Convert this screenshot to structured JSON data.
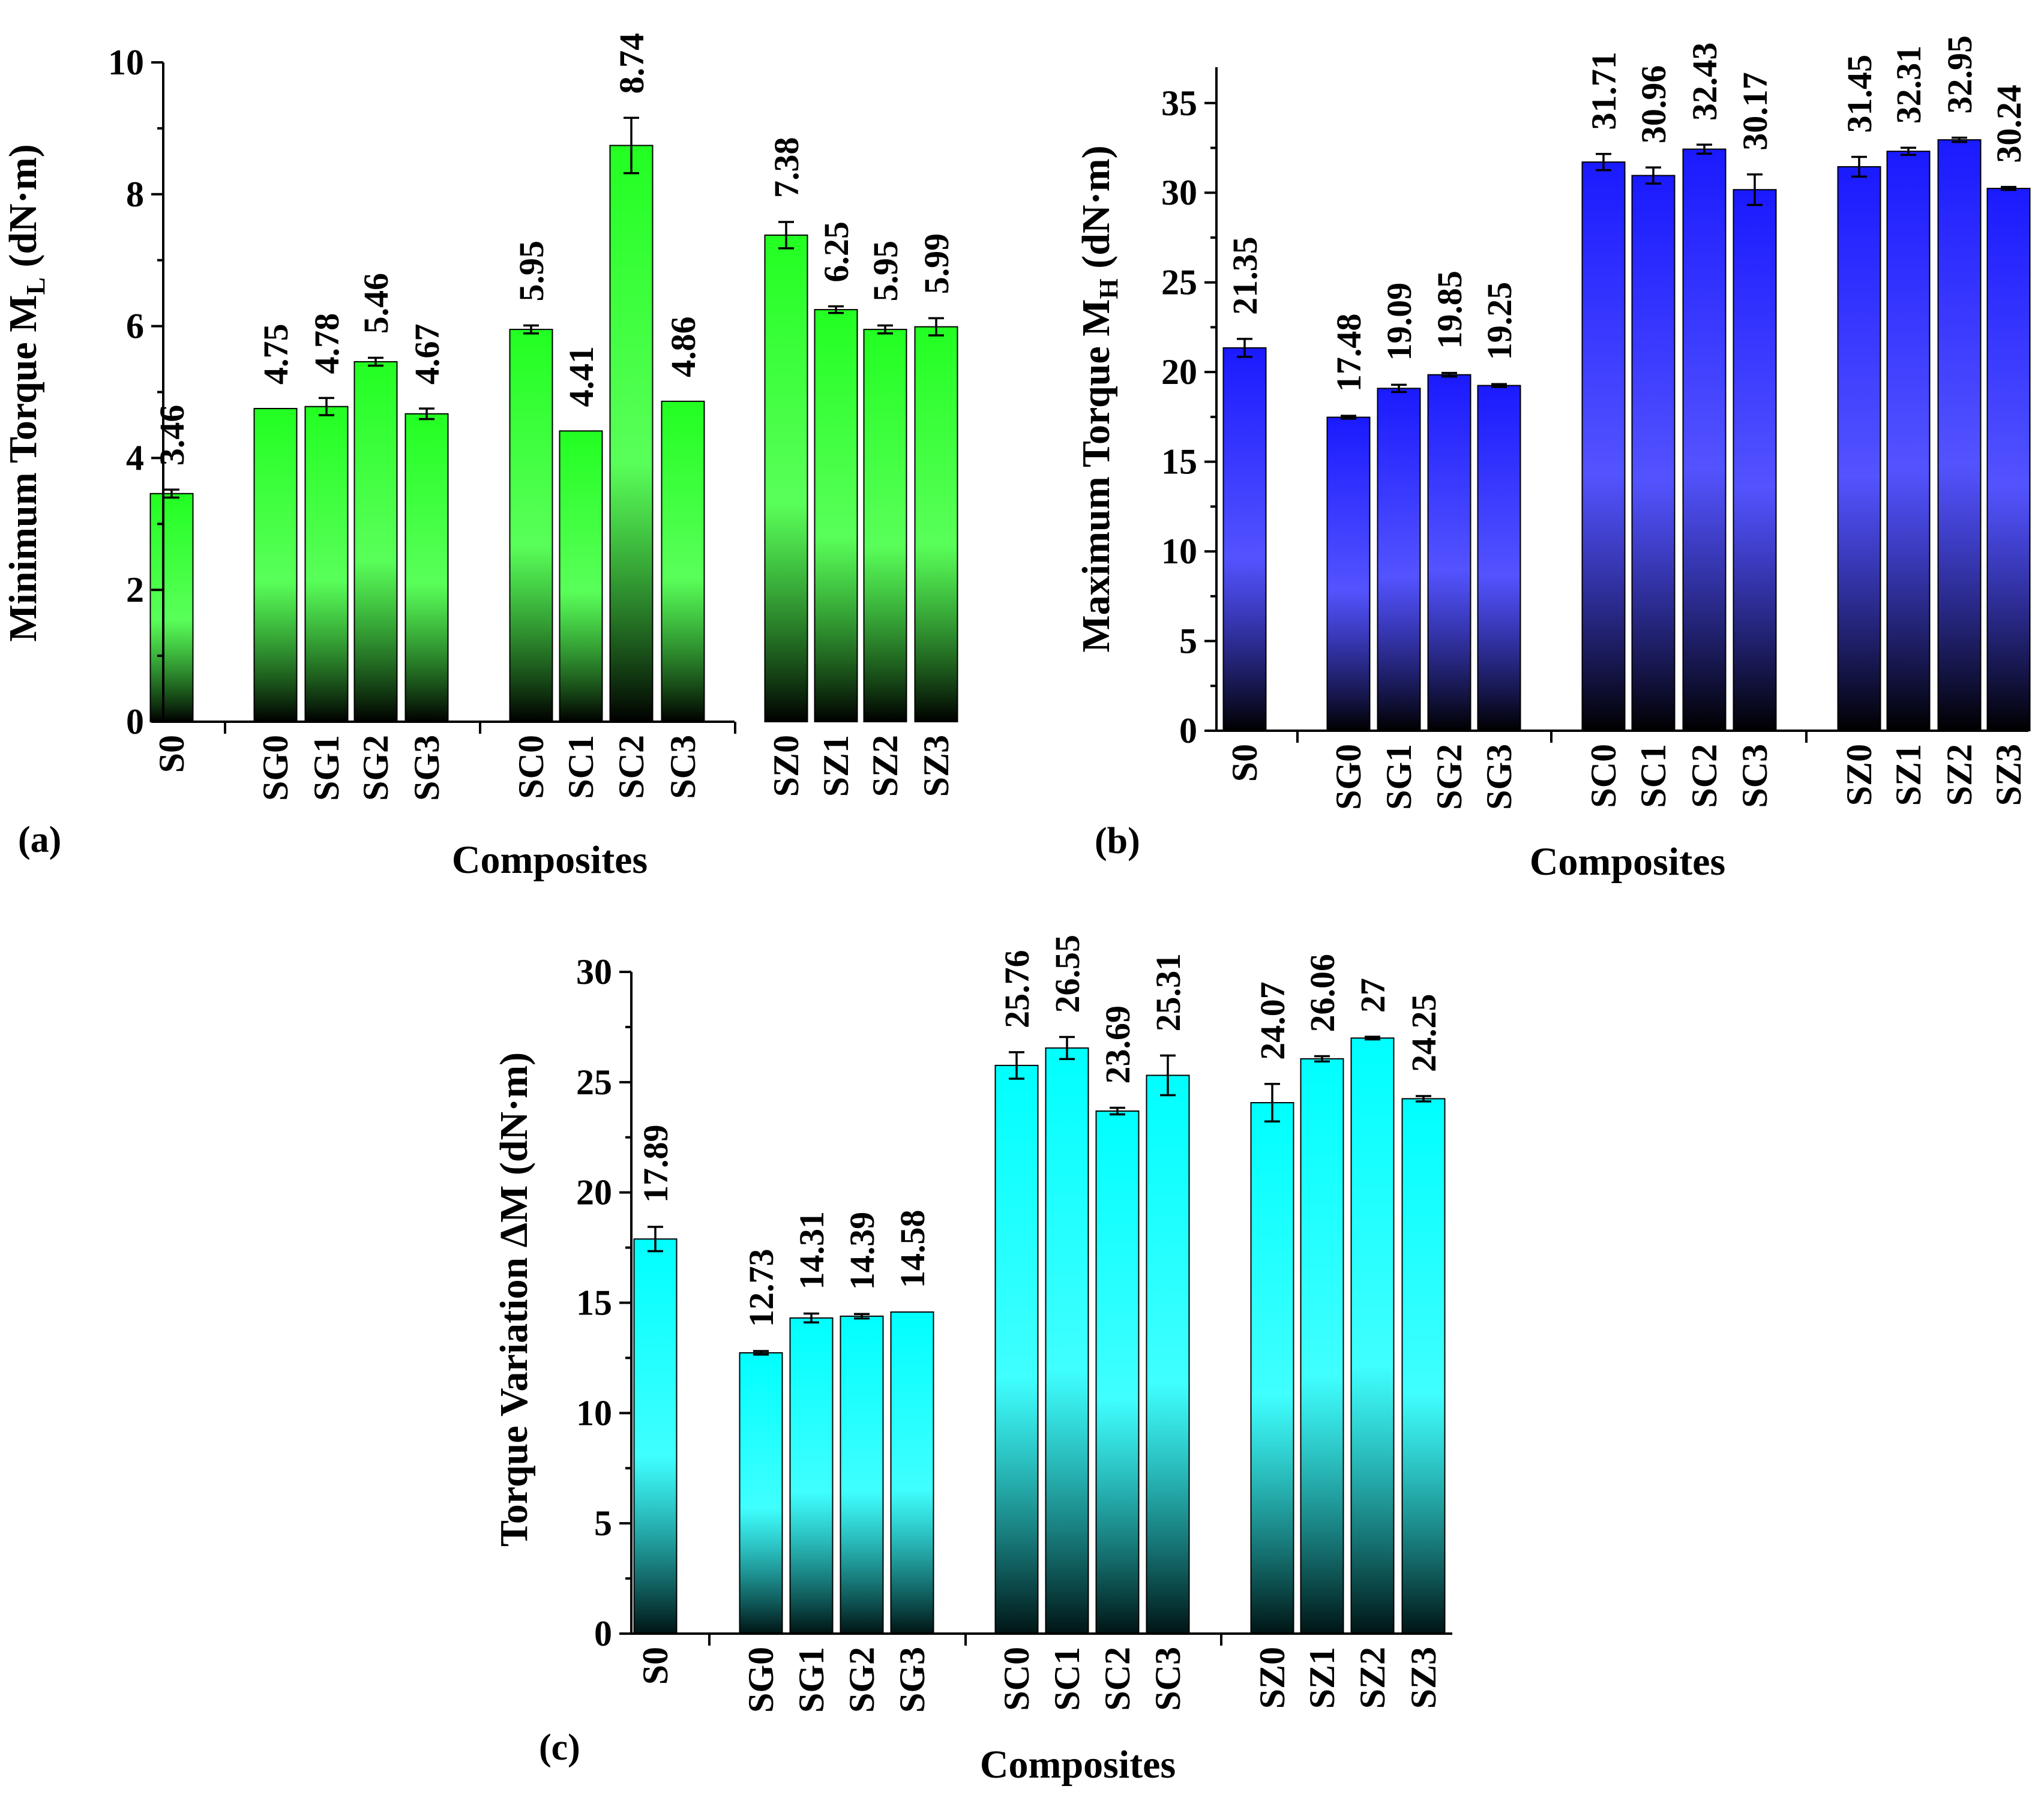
{
  "figure": {
    "panels": [
      "a",
      "b",
      "c"
    ]
  },
  "chart_data": [
    {
      "id": "a",
      "type": "bar",
      "panel_label": "(a)",
      "title": "",
      "xlabel": "Composites",
      "ylabel": "Minimum Torque M",
      "ylabel_sub": "L",
      "ylabel_suffix": " (dN·m)",
      "ylim": [
        0,
        10
      ],
      "yticks": [
        0,
        2,
        4,
        6,
        8,
        10
      ],
      "grid": false,
      "gradient": [
        "#22ff22",
        "#000000"
      ],
      "categories": [
        "S0",
        "SG0",
        "SG1",
        "SG2",
        "SG3",
        "SC0",
        "SC1",
        "SC2",
        "SC3",
        "SZ0",
        "SZ1",
        "SZ2",
        "SZ3"
      ],
      "values": [
        3.46,
        4.75,
        4.78,
        5.46,
        4.67,
        5.95,
        4.41,
        8.74,
        4.86,
        7.38,
        6.25,
        5.95,
        5.99
      ],
      "value_labels": [
        "3.46",
        "4.75",
        "4.78",
        "5.46",
        "4.67",
        "5.95",
        "4.41",
        "8.74",
        "4.86",
        "7.38",
        "6.25",
        "5.95",
        "5.99"
      ],
      "errors": [
        0.06,
        0.0,
        0.13,
        0.06,
        0.08,
        0.06,
        0.0,
        0.42,
        0.0,
        0.2,
        0.05,
        0.06,
        0.13
      ]
    },
    {
      "id": "b",
      "type": "bar",
      "panel_label": "(b)",
      "title": "",
      "xlabel": "Composites",
      "ylabel": "Maximum Torque M",
      "ylabel_sub": "H",
      "ylabel_suffix": " (dN·m)",
      "ylim": [
        0,
        37
      ],
      "yticks": [
        0,
        5,
        10,
        15,
        20,
        25,
        30,
        35
      ],
      "grid": false,
      "gradient": [
        "#1a1aff",
        "#000000"
      ],
      "categories": [
        "S0",
        "SG0",
        "SG1",
        "SG2",
        "SG3",
        "SC0",
        "SC1",
        "SC2",
        "SC3",
        "SZ0",
        "SZ1",
        "SZ2",
        "SZ3"
      ],
      "values": [
        21.35,
        17.48,
        19.09,
        19.85,
        19.25,
        31.71,
        30.96,
        32.43,
        30.17,
        31.45,
        32.31,
        32.95,
        30.24
      ],
      "value_labels": [
        "21.35",
        "17.48",
        "19.09",
        "19.85",
        "19.25",
        "31.71",
        "30.96",
        "32.43",
        "30.17",
        "31.45",
        "32.31",
        "32.95",
        "30.24"
      ],
      "errors": [
        0.5,
        0.08,
        0.2,
        0.1,
        0.08,
        0.45,
        0.45,
        0.25,
        0.85,
        0.55,
        0.2,
        0.12,
        0.08
      ]
    },
    {
      "id": "c",
      "type": "bar",
      "panel_label": "(c)",
      "title": "",
      "xlabel": "Composites",
      "ylabel": "Torque Variation ΔM (dN·m)",
      "ylabel_sub": "",
      "ylabel_suffix": "",
      "ylim": [
        0,
        30
      ],
      "yticks": [
        0,
        5,
        10,
        15,
        20,
        25,
        30
      ],
      "grid": false,
      "gradient": [
        "#00ffff",
        "#001414"
      ],
      "categories": [
        "S0",
        "SG0",
        "SG1",
        "SG2",
        "SG3",
        "SC0",
        "SC1",
        "SC2",
        "SC3",
        "SZ0",
        "SZ1",
        "SZ2",
        "SZ3"
      ],
      "values": [
        17.89,
        12.73,
        14.31,
        14.39,
        14.58,
        25.76,
        26.55,
        23.69,
        25.31,
        24.07,
        26.06,
        27,
        24.25
      ],
      "value_labels": [
        "17.89",
        "12.73",
        "14.31",
        "14.39",
        "14.58",
        "25.76",
        "26.55",
        "23.69",
        "25.31",
        "24.07",
        "26.06",
        "27",
        "24.25"
      ],
      "errors": [
        0.55,
        0.08,
        0.2,
        0.1,
        0.0,
        0.6,
        0.5,
        0.15,
        0.9,
        0.85,
        0.12,
        0.06,
        0.12
      ]
    }
  ]
}
